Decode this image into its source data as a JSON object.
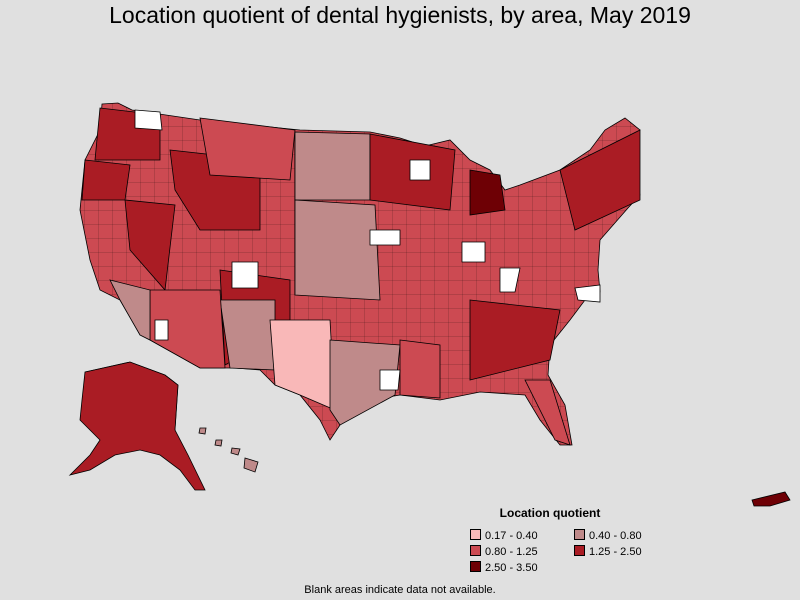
{
  "title": "Location quotient of dental hygienists, by area, May 2019",
  "legend": {
    "title": "Location quotient",
    "items": [
      {
        "label": "0.17 - 0.40",
        "color": "#f9b8b8"
      },
      {
        "label": "0.40 - 0.80",
        "color": "#bf8a8a"
      },
      {
        "label": "0.80 - 1.25",
        "color": "#cc4a52"
      },
      {
        "label": "1.25 - 2.50",
        "color": "#aa1c24"
      },
      {
        "label": "2.50 - 3.50",
        "color": "#6e0005"
      }
    ]
  },
  "footnote": "Blank areas indicate data not available.",
  "colors": {
    "background": "#e0e0e0",
    "no_data": "#ffffff",
    "border": "#000000"
  }
}
